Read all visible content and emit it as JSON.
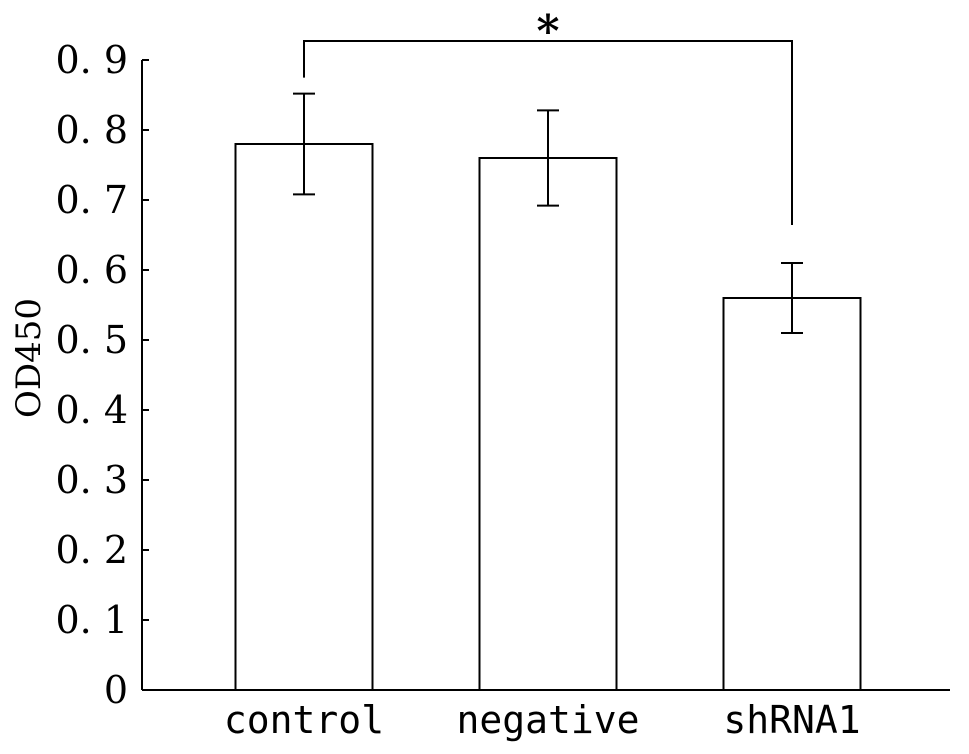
{
  "chart_data": {
    "type": "bar",
    "title": "",
    "xlabel": "",
    "ylabel": "OD450",
    "categories": [
      "control",
      "negative",
      "shRNA1"
    ],
    "values": [
      0.78,
      0.76,
      0.56
    ],
    "errors": [
      0.072,
      0.068,
      0.05
    ],
    "ylim": [
      0,
      0.9
    ],
    "yticks": [
      0,
      0.1,
      0.2,
      0.3,
      0.4,
      0.5,
      0.6,
      0.7,
      0.8,
      0.9
    ],
    "ytick_labels": [
      "0",
      "0. 1",
      "0. 2",
      "0. 3",
      "0. 4",
      "0. 5",
      "0. 6",
      "0. 7",
      "0. 8",
      "0. 9"
    ],
    "grid": false,
    "legend": "none",
    "colors": {
      "bar_fill": "#ffffff",
      "bar_stroke": "#000000",
      "axis": "#000000"
    },
    "annotations": [
      {
        "type": "significance-bracket",
        "from": "control",
        "to": "shRNA1",
        "label": "*"
      }
    ]
  }
}
